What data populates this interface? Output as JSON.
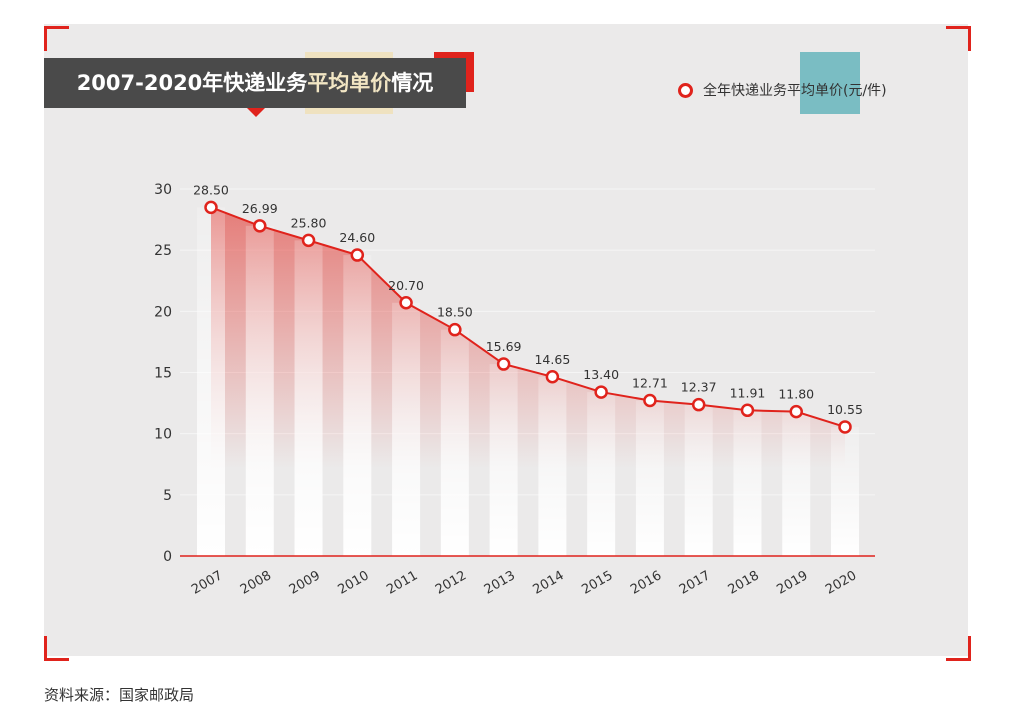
{
  "title": {
    "prefix": "2007-2020年快递业务",
    "highlight": "平均单价",
    "suffix": "情况"
  },
  "source": "资料来源：国家邮政局",
  "colors": {
    "accent": "#e0231c",
    "title_bg": "#4a4a4a",
    "panel": "#ebeaea"
  },
  "chart_data": {
    "type": "line",
    "title": "2007-2020年快递业务平均单价情况",
    "categories": [
      "2007",
      "2008",
      "2009",
      "2010",
      "2011",
      "2012",
      "2013",
      "2014",
      "2015",
      "2016",
      "2017",
      "2018",
      "2019",
      "2020"
    ],
    "series": [
      {
        "name": "全年快递业务平均单价(元/件)",
        "values": [
          28.5,
          26.99,
          25.8,
          24.6,
          20.7,
          18.5,
          15.69,
          14.65,
          13.4,
          12.71,
          12.37,
          11.91,
          11.8,
          10.55
        ],
        "labels": [
          "28.50",
          "26.99",
          "25.80",
          "24.60",
          "20.70",
          "18.50",
          "15.69",
          "14.65",
          "13.40",
          "12.71",
          "12.37",
          "11.91",
          "11.80",
          "10.55"
        ]
      }
    ],
    "yticks": [
      "0",
      "5",
      "10",
      "15",
      "20",
      "25",
      "30"
    ],
    "ylim": [
      0,
      30
    ],
    "grid": true,
    "legend": "top-right"
  }
}
